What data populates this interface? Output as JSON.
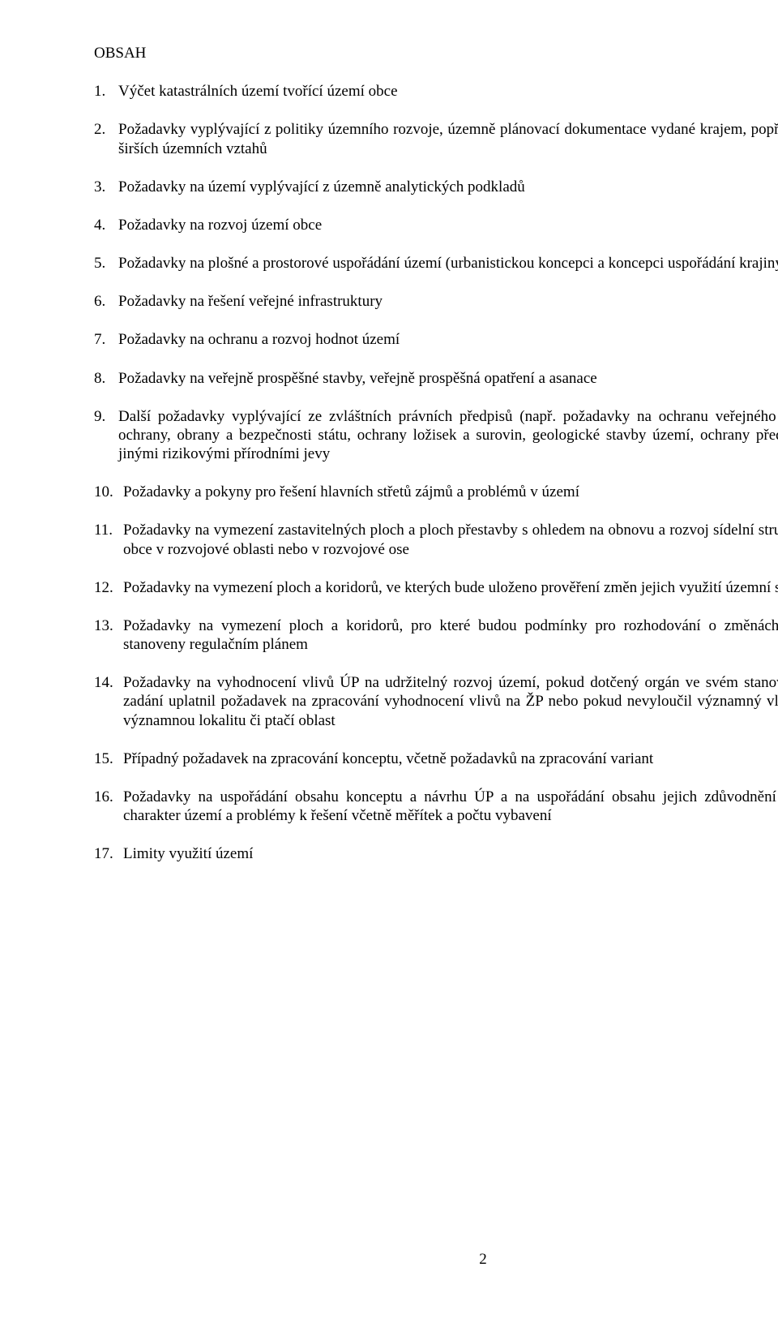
{
  "colors": {
    "background": "#ffffff",
    "text": "#000000"
  },
  "typography": {
    "font_family": "Times New Roman",
    "font_size_pt": 14,
    "line_height": 1.22
  },
  "heading": "OBSAH",
  "items": [
    {
      "num": "1.",
      "text": "Výčet katastrálních území tvořící území obce"
    },
    {
      "num": "2.",
      "text": "Požadavky vyplývající z politiky územního rozvoje, územně plánovací dokumentace vydané krajem, popřípadě z dalších širších územních vztahů"
    },
    {
      "num": "3.",
      "text": "Požadavky na území vyplývající z územně analytických podkladů"
    },
    {
      "num": "4.",
      "text": "Požadavky na rozvoj území obce"
    },
    {
      "num": "5.",
      "text": "Požadavky na plošné a prostorové uspořádání území (urbanistickou koncepci a koncepci uspořádání krajiny)"
    },
    {
      "num": "6.",
      "text": "Požadavky na řešení veřejné infrastruktury"
    },
    {
      "num": "7.",
      "text": "Požadavky na ochranu a rozvoj hodnot území"
    },
    {
      "num": "8.",
      "text": "Požadavky na veřejně prospěšné stavby, veřejně prospěšná opatření a asanace"
    },
    {
      "num": "9.",
      "text": "Další požadavky vyplývající ze zvláštních právních předpisů (např. požadavky na ochranu veřejného zdraví, civilní ochrany, obrany a bezpečnosti státu, ochrany ložisek a surovin, geologické stavby území, ochrany před povodněmi a jinými rizikovými přírodními jevy"
    },
    {
      "num": "10.",
      "text": "Požadavky a pokyny pro řešení hlavních střetů zájmů a problémů v území"
    },
    {
      "num": "11.",
      "text": "Požadavky na vymezení zastavitelných ploch a ploch přestavby s ohledem na obnovu a rozvoj sídelní struktury a polohu obce v rozvojové oblasti nebo v rozvojové ose"
    },
    {
      "num": "12.",
      "text": "Požadavky na vymezení ploch a koridorů, ve kterých bude uloženo prověření změn jejich využití územní studií"
    },
    {
      "num": "13.",
      "text": "Požadavky na vymezení ploch a koridorů, pro které budou podmínky pro rozhodování o změnách jejich využití stanoveny regulačním plánem"
    },
    {
      "num": "14.",
      "text": "Požadavky na vyhodnocení vlivů ÚP na udržitelný rozvoj území, pokud dotčený orgán ve svém stanovisku k návrhu zadání uplatnil požadavek na zpracování vyhodnocení vlivů na ŽP nebo pokud nevyloučil významný vliv na evropsky významnou lokalitu či ptačí oblast"
    },
    {
      "num": "15.",
      "text": "Případný požadavek na zpracování konceptu, včetně požadavků na zpracování variant"
    },
    {
      "num": "16.",
      "text": "Požadavky na uspořádání obsahu konceptu a návrhu ÚP a na uspořádání obsahu jejich zdůvodnění s ohledem na charakter území a problémy k řešení včetně měřítek a počtu vybavení"
    },
    {
      "num": "17.",
      "text": "Limity využití území"
    }
  ],
  "page_number": "2"
}
